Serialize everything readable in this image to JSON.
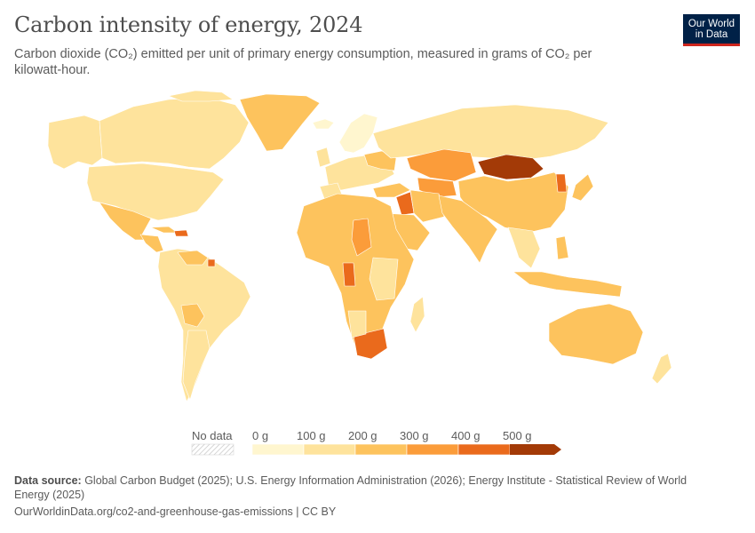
{
  "header": {
    "title": "Carbon intensity of energy, 2024",
    "subtitle": "Carbon dioxide (CO₂) emitted per unit of primary energy consumption, measured in grams of CO₂ per kilowatt-hour."
  },
  "logo": {
    "line1": "Our World",
    "line2": "in Data"
  },
  "legend": {
    "no_data_label": "No data",
    "bins": [
      {
        "label": "0 g",
        "color": "#fff6cf"
      },
      {
        "label": "100 g",
        "color": "#fee39c"
      },
      {
        "label": "200 g",
        "color": "#fdc35d"
      },
      {
        "label": "300 g",
        "color": "#fb9c3a"
      },
      {
        "label": "400 g",
        "color": "#ea6a1c"
      },
      {
        "label": "500 g",
        "color": "#a33a07"
      }
    ]
  },
  "colors": {
    "c0": "#fff6cf",
    "c1": "#fee39c",
    "c2": "#fdc35d",
    "c3": "#fb9c3a",
    "c4": "#ea6a1c",
    "c5": "#a33a07"
  },
  "footer": {
    "source_label": "Data source:",
    "source_text": " Global Carbon Budget (2025); U.S. Energy Information Administration (2026); Energy Institute - Statistical Review of World Energy (2025)",
    "url": "OurWorldinData.org/co2-and-greenhouse-gas-emissions | CC BY"
  }
}
